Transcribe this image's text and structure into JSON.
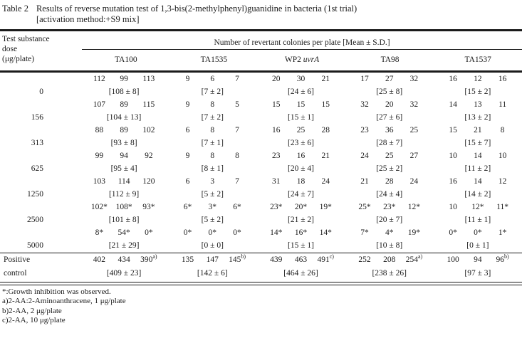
{
  "title": {
    "label": "Table 2",
    "line1": "Results of reverse mutation test of 1,3-bis(2-methylphenyl)guanidine in bacteria (1st trial)",
    "line2": "[activation method:+S9 mix]"
  },
  "table": {
    "dose_header_lines": [
      "Test substance",
      "dose",
      "(μg/plate)"
    ],
    "span_header": "Number of revertant colonies per plate [Mean ± S.D.]",
    "strains": [
      {
        "key": "ta100",
        "text": "TA100"
      },
      {
        "key": "ta1535",
        "text": "TA1535"
      },
      {
        "key": "wp2-uvra",
        "text": "WP2 ",
        "italic": "uvrA"
      },
      {
        "key": "ta98",
        "text": "TA98"
      },
      {
        "key": "ta1537",
        "text": "TA1537"
      }
    ],
    "rows": [
      {
        "key": "0",
        "dose_lines": [
          "",
          "0"
        ],
        "cells": [
          {
            "values": [
              "112",
              "99",
              "113"
            ],
            "mean": "[108 ± 8]"
          },
          {
            "values": [
              "9",
              "6",
              "7"
            ],
            "mean": "[7 ± 2]"
          },
          {
            "values": [
              "20",
              "30",
              "21"
            ],
            "mean": "[24 ± 6]"
          },
          {
            "values": [
              "17",
              "27",
              "32"
            ],
            "mean": "[25 ± 8]"
          },
          {
            "values": [
              "16",
              "12",
              "16"
            ],
            "mean": "[15 ± 2]"
          }
        ]
      },
      {
        "key": "156",
        "dose_lines": [
          "",
          "156"
        ],
        "cells": [
          {
            "values": [
              "107",
              "89",
              "115"
            ],
            "mean": "[104 ± 13]"
          },
          {
            "values": [
              "9",
              "8",
              "5"
            ],
            "mean": "[7 ± 2]"
          },
          {
            "values": [
              "15",
              "15",
              "15"
            ],
            "mean": "[15 ± 1]"
          },
          {
            "values": [
              "32",
              "20",
              "32"
            ],
            "mean": "[27 ± 6]"
          },
          {
            "values": [
              "14",
              "13",
              "11"
            ],
            "mean": "[13 ± 2]"
          }
        ]
      },
      {
        "key": "313",
        "dose_lines": [
          "",
          "313"
        ],
        "cells": [
          {
            "values": [
              "88",
              "89",
              "102"
            ],
            "mean": "[93 ± 8]"
          },
          {
            "values": [
              "6",
              "8",
              "7"
            ],
            "mean": "[7 ± 1]"
          },
          {
            "values": [
              "16",
              "25",
              "28"
            ],
            "mean": "[23 ± 6]"
          },
          {
            "values": [
              "23",
              "36",
              "25"
            ],
            "mean": "[28 ± 7]"
          },
          {
            "values": [
              "15",
              "21",
              "8"
            ],
            "mean": "[15 ± 7]"
          }
        ]
      },
      {
        "key": "625",
        "dose_lines": [
          "",
          "625"
        ],
        "cells": [
          {
            "values": [
              "99",
              "94",
              "92"
            ],
            "mean": "[95 ± 4]"
          },
          {
            "values": [
              "9",
              "8",
              "8"
            ],
            "mean": "[8 ± 1]"
          },
          {
            "values": [
              "23",
              "16",
              "21"
            ],
            "mean": "[20 ± 4]"
          },
          {
            "values": [
              "24",
              "25",
              "27"
            ],
            "mean": "[25 ± 2]"
          },
          {
            "values": [
              "10",
              "14",
              "10"
            ],
            "mean": "[11 ± 2]"
          }
        ]
      },
      {
        "key": "1250",
        "dose_lines": [
          "",
          "1250"
        ],
        "cells": [
          {
            "values": [
              "103",
              "114",
              "120"
            ],
            "mean": "[112 ± 9]"
          },
          {
            "values": [
              "6",
              "3",
              "7"
            ],
            "mean": "[5 ± 2]"
          },
          {
            "values": [
              "31",
              "18",
              "24"
            ],
            "mean": "[24 ± 7]"
          },
          {
            "values": [
              "21",
              "28",
              "24"
            ],
            "mean": "[24 ± 4]"
          },
          {
            "values": [
              "16",
              "14",
              "12"
            ],
            "mean": "[14 ± 2]"
          }
        ]
      },
      {
        "key": "2500",
        "dose_lines": [
          "",
          "2500"
        ],
        "cells": [
          {
            "values": [
              "102*",
              "108*",
              "93*"
            ],
            "mean": "[101 ± 8]"
          },
          {
            "values": [
              "6*",
              "3*",
              "6*"
            ],
            "mean": "[5 ± 2]"
          },
          {
            "values": [
              "23*",
              "20*",
              "19*"
            ],
            "mean": "[21 ± 2]"
          },
          {
            "values": [
              "25*",
              "23*",
              "12*"
            ],
            "mean": "[20 ± 7]"
          },
          {
            "values": [
              "10",
              "12*",
              "11*"
            ],
            "mean": "[11 ± 1]"
          }
        ]
      },
      {
        "key": "5000",
        "dose_lines": [
          "",
          "5000"
        ],
        "cells": [
          {
            "values": [
              "8*",
              "54*",
              "0*"
            ],
            "mean": "[21 ± 29]"
          },
          {
            "values": [
              "0*",
              "0*",
              "0*"
            ],
            "mean": "[0 ± 0]"
          },
          {
            "values": [
              "14*",
              "16*",
              "14*"
            ],
            "mean": "[15 ± 1]"
          },
          {
            "values": [
              "7*",
              "4*",
              "19*"
            ],
            "mean": "[10 ± 8]"
          },
          {
            "values": [
              "0*",
              "0*",
              "1*"
            ],
            "mean": "[0 ± 1]"
          }
        ]
      }
    ],
    "control_row": {
      "key": "positive-control",
      "dose_lines": [
        "Positive",
        "control"
      ],
      "cells": [
        {
          "values": [
            "402",
            "434",
            "390^a)"
          ],
          "mean": "[409 ± 23]"
        },
        {
          "values": [
            "135",
            "147",
            "145^b)"
          ],
          "mean": "[142 ± 6]"
        },
        {
          "values": [
            "439",
            "463",
            "491^c)"
          ],
          "mean": "[464 ± 26]"
        },
        {
          "values": [
            "252",
            "208",
            "254^a)"
          ],
          "mean": "[238 ± 26]"
        },
        {
          "values": [
            "100",
            "94",
            "96^b)"
          ],
          "mean": "[97 ± 3]"
        }
      ]
    }
  },
  "footnotes": [
    "*:Growth inhibition was observed.",
    "a)2-AA:2-Aminoanthracene, 1 μg/plate",
    "b)2-AA, 2 μg/plate",
    "c)2-AA, 10 μg/plate"
  ]
}
